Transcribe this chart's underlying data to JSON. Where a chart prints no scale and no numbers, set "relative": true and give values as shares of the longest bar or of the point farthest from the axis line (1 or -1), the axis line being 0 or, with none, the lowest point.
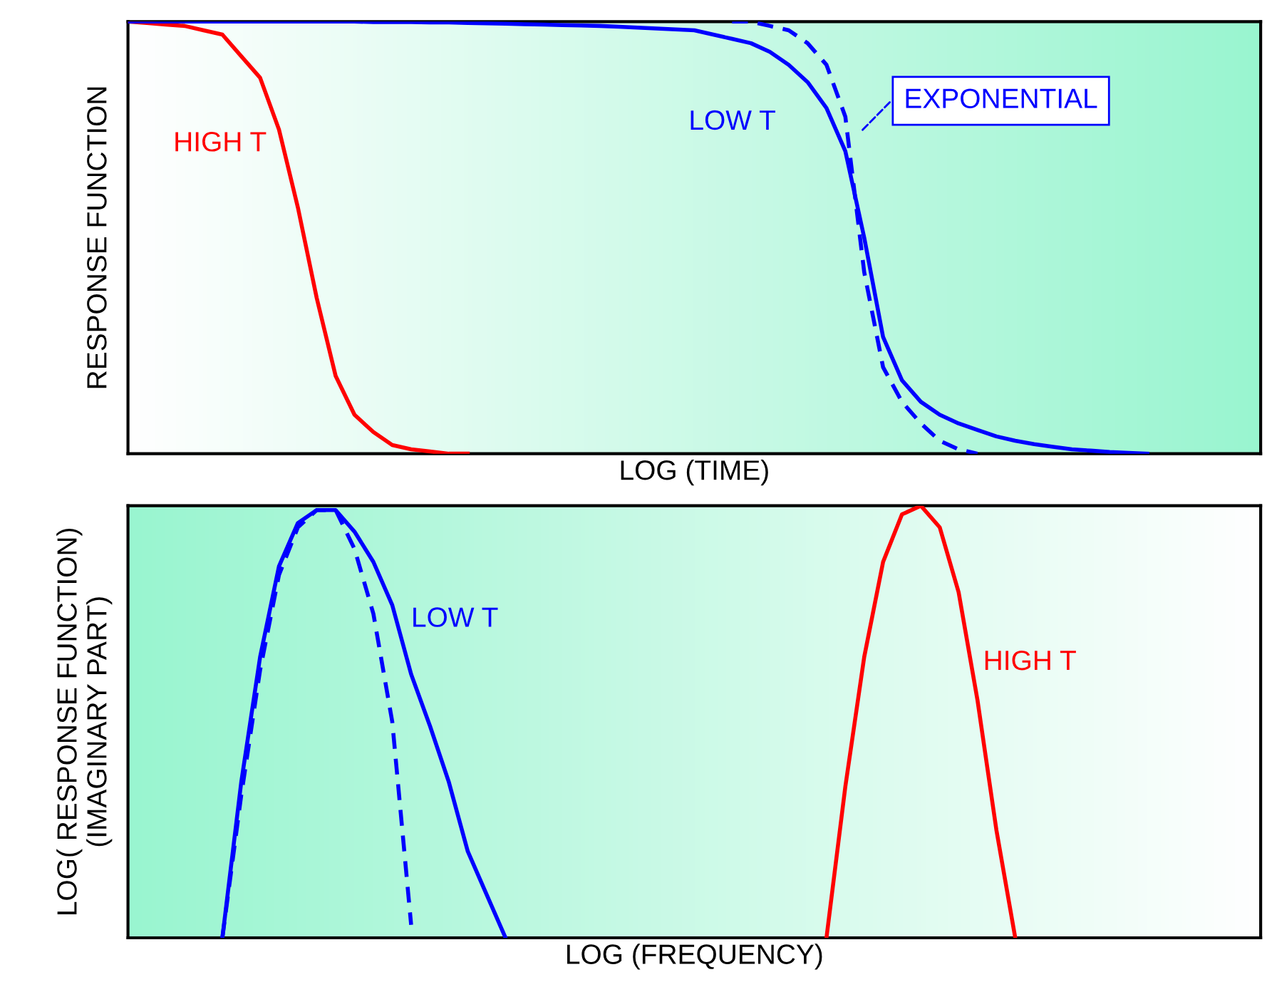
{
  "chart_data": [
    {
      "type": "line",
      "relative": true,
      "xlabel": "LOG (TIME)",
      "ylabel": "RESPONSE FUNCTION",
      "categories": [
        null,
        null,
        null,
        null,
        null,
        null,
        null,
        null,
        null,
        null,
        null,
        null,
        null,
        null,
        null,
        null,
        null,
        null,
        null,
        null,
        null,
        null,
        null,
        null,
        null,
        null,
        null,
        null,
        null,
        null,
        null,
        null,
        null,
        null,
        null,
        null,
        null,
        null,
        null,
        null,
        null,
        null,
        null,
        null,
        null,
        null,
        null,
        null,
        null,
        null,
        null,
        null,
        null,
        null,
        null,
        null,
        null,
        null,
        null,
        null,
        null
      ],
      "series": [
        {
          "name": "HIGH T",
          "color": "#ff0000",
          "line_style": "solid",
          "values": [
            1.0,
            0.997,
            0.993,
            0.99,
            0.98,
            0.97,
            0.92,
            0.87,
            0.75,
            0.57,
            0.36,
            0.18,
            0.09,
            0.05,
            0.02,
            0.01,
            0.005,
            0,
            0,
            null,
            null,
            null,
            null,
            null,
            null,
            null,
            null,
            null,
            null,
            null,
            null,
            null,
            null,
            null,
            null,
            null,
            null,
            null,
            null,
            null,
            null,
            null,
            null,
            null,
            null,
            null,
            null,
            null,
            null,
            null,
            null,
            null,
            null,
            null,
            null,
            null,
            null,
            null,
            null,
            null,
            null
          ]
        },
        {
          "name": "LOW T",
          "color": "#0000ff",
          "line_style": "solid",
          "values": [
            1.0,
            1.0,
            1.0,
            1.0,
            1.0,
            1.0,
            1.0,
            1.0,
            1.0,
            1.0,
            1.0,
            1.0,
            1.0,
            0.999,
            0.999,
            0.999,
            0.998,
            0.998,
            0.997,
            0.996,
            0.995,
            0.994,
            0.993,
            0.992,
            0.991,
            0.99,
            0.988,
            0.986,
            0.984,
            0.982,
            0.98,
            0.97,
            0.96,
            0.95,
            0.93,
            0.9,
            0.86,
            0.8,
            0.7,
            0.5,
            0.27,
            0.17,
            0.12,
            0.09,
            0.07,
            0.055,
            0.04,
            0.03,
            0.022,
            0.016,
            0.01,
            0.007,
            0.004,
            0.002,
            0,
            null,
            null,
            null,
            null,
            null,
            null
          ]
        },
        {
          "name": "EXPONENTIAL",
          "color": "#0000ff",
          "line_style": "dashed",
          "values": [
            null,
            null,
            null,
            null,
            null,
            null,
            null,
            null,
            null,
            null,
            null,
            null,
            null,
            null,
            null,
            null,
            null,
            null,
            null,
            null,
            null,
            null,
            null,
            null,
            null,
            null,
            null,
            null,
            null,
            null,
            null,
            null,
            1.0,
            1.0,
            0.99,
            0.98,
            0.95,
            0.9,
            0.78,
            0.42,
            0.2,
            0.12,
            0.07,
            0.03,
            0.01,
            0,
            null,
            null,
            null,
            null,
            null,
            null,
            null,
            null,
            null,
            null,
            null,
            null,
            null,
            null,
            null
          ]
        }
      ]
    },
    {
      "type": "line",
      "relative": true,
      "xlabel": "LOG (FREQUENCY)",
      "ylabel": "LOG( RESPONSE FUNCTION)\n(IMAGINARY PART)",
      "categories": [
        null,
        null,
        null,
        null,
        null,
        null,
        null,
        null,
        null,
        null,
        null,
        null,
        null,
        null,
        null,
        null,
        null,
        null,
        null,
        null,
        null,
        null,
        null,
        null,
        null,
        null,
        null,
        null,
        null,
        null,
        null,
        null,
        null,
        null,
        null,
        null,
        null,
        null,
        null,
        null,
        null,
        null,
        null,
        null,
        null,
        null,
        null,
        null,
        null,
        null,
        null,
        null,
        null,
        null,
        null,
        null,
        null,
        null,
        null,
        null,
        null
      ],
      "series": [
        {
          "name": "LOW T",
          "color": "#0000ff",
          "line_style": "solid",
          "values": [
            null,
            null,
            null,
            null,
            null,
            0,
            0.36,
            0.65,
            0.86,
            0.96,
            0.99,
            0.99,
            0.94,
            0.87,
            0.77,
            0.61,
            0.49,
            0.36,
            0.2,
            0.1,
            0,
            null,
            null,
            null,
            null,
            null,
            null,
            null,
            null,
            null,
            null,
            null,
            null,
            null,
            null,
            null,
            null,
            null,
            null,
            null,
            null,
            null,
            null,
            null,
            null,
            null,
            null,
            null,
            null,
            null,
            null,
            null,
            null,
            null,
            null,
            null,
            null,
            null,
            null,
            null,
            null
          ]
        },
        {
          "color": "#0000ff",
          "line_style": "dashed",
          "values": [
            null,
            null,
            null,
            null,
            null,
            0,
            0.33,
            0.62,
            0.84,
            0.95,
            0.99,
            0.99,
            0.9,
            0.75,
            0.5,
            0.03,
            null,
            null,
            null,
            null,
            null,
            null,
            null,
            null,
            null,
            null,
            null,
            null,
            null,
            null,
            null,
            null,
            null,
            null,
            null,
            null,
            null,
            null,
            null,
            null,
            null,
            null,
            null,
            null,
            null,
            null,
            null,
            null,
            null,
            null,
            null,
            null,
            null,
            null,
            null,
            null,
            null,
            null,
            null,
            null,
            null
          ]
        },
        {
          "name": "HIGH T",
          "color": "#ff0000",
          "line_style": "solid",
          "values": [
            null,
            null,
            null,
            null,
            null,
            null,
            null,
            null,
            null,
            null,
            null,
            null,
            null,
            null,
            null,
            null,
            null,
            null,
            null,
            null,
            null,
            null,
            null,
            null,
            null,
            null,
            null,
            null,
            null,
            null,
            null,
            null,
            null,
            null,
            null,
            null,
            null,
            0,
            0.35,
            0.65,
            0.87,
            0.98,
            1.0,
            0.95,
            0.8,
            0.55,
            0.25,
            0,
            null,
            null,
            null,
            null,
            null,
            null,
            null,
            null,
            null,
            null,
            null,
            null,
            null
          ]
        }
      ]
    }
  ]
}
